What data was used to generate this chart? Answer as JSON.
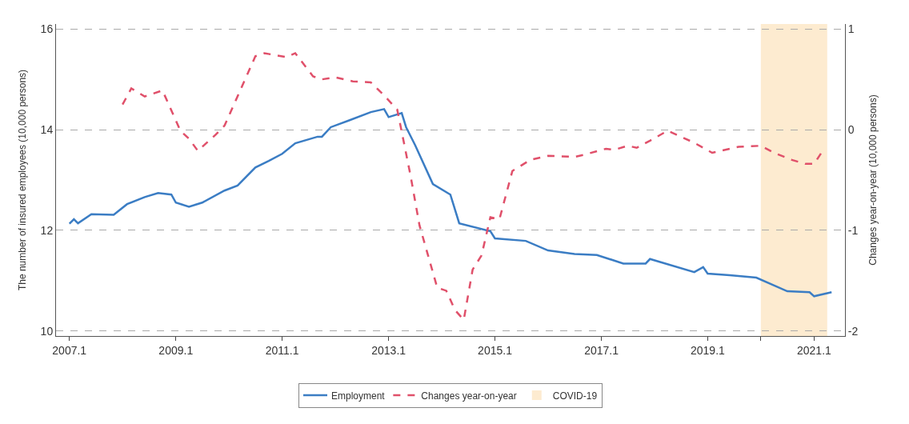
{
  "chart_data": {
    "type": "line",
    "ylabel": "The number of insured employees (10,000 persons)",
    "y2label": "Changes year-on-year (10,000 persons)",
    "series": [
      {
        "name": "Employment",
        "color": "#3b7dc4",
        "line_style": "solid",
        "x": [
          "2007-01",
          "2007-02",
          "2007-03",
          "2007-06",
          "2007-11",
          "2008-02",
          "2008-06",
          "2008-09",
          "2008-12",
          "2009-01",
          "2009-04",
          "2009-07",
          "2009-12",
          "2010-03",
          "2010-07",
          "2010-10",
          "2011-01",
          "2011-04",
          "2011-09",
          "2011-10",
          "2011-12",
          "2012-04",
          "2012-09",
          "2012-12",
          "2013-01",
          "2013-04",
          "2013-05",
          "2013-07",
          "2013-11",
          "2014-03",
          "2014-05",
          "2014-12",
          "2015-01",
          "2015-08",
          "2016-01",
          "2016-07",
          "2016-12",
          "2017-06",
          "2017-11",
          "2017-12",
          "2018-10",
          "2018-12",
          "2019-01",
          "2019-06",
          "2019-12",
          "2020-07",
          "2020-12",
          "2021-01",
          "2021-05"
        ],
        "values": [
          12.13,
          12.22,
          12.14,
          12.32,
          12.31,
          12.52,
          12.66,
          12.74,
          12.71,
          12.55,
          12.47,
          12.55,
          12.79,
          12.89,
          13.25,
          13.38,
          13.52,
          13.73,
          13.86,
          13.86,
          14.05,
          14.18,
          14.35,
          14.41,
          14.25,
          14.33,
          14.05,
          13.7,
          12.92,
          12.71,
          12.14,
          11.98,
          11.84,
          11.79,
          11.6,
          11.53,
          11.51,
          11.34,
          11.34,
          11.43,
          11.17,
          11.27,
          11.14,
          11.11,
          11.06,
          10.79,
          10.77,
          10.69,
          10.77
        ]
      },
      {
        "name": "Changes year-on-year",
        "color": "#e0506a",
        "line_style": "dashed",
        "axis": "y2",
        "x": [
          "2008-01",
          "2008-03",
          "2008-06",
          "2008-10",
          "2009-02",
          "2009-04",
          "2009-06",
          "2009-10",
          "2009-12",
          "2010-05",
          "2010-07",
          "2010-09",
          "2011-02",
          "2011-04",
          "2011-08",
          "2011-10",
          "2012-01",
          "2012-05",
          "2012-09",
          "2012-12",
          "2013-03",
          "2013-04",
          "2013-06",
          "2013-08",
          "2013-12",
          "2014-02",
          "2014-04",
          "2014-06",
          "2014-08",
          "2014-10",
          "2014-12",
          "2015-02",
          "2015-05",
          "2015-09",
          "2016-01",
          "2016-07",
          "2016-09",
          "2017-02",
          "2017-04",
          "2017-07",
          "2017-09",
          "2017-12",
          "2018-04",
          "2018-06",
          "2018-10",
          "2019-02",
          "2019-08",
          "2020-01",
          "2020-04",
          "2020-08",
          "2020-11",
          "2021-01",
          "2021-03"
        ],
        "values": [
          0.25,
          0.41,
          0.33,
          0.39,
          -0.01,
          -0.09,
          -0.21,
          -0.05,
          0.04,
          0.53,
          0.73,
          0.76,
          0.72,
          0.76,
          0.53,
          0.5,
          0.52,
          0.48,
          0.47,
          0.34,
          0.2,
          -0.02,
          -0.46,
          -0.95,
          -1.57,
          -1.6,
          -1.79,
          -1.89,
          -1.39,
          -1.25,
          -0.87,
          -0.89,
          -0.41,
          -0.3,
          -0.26,
          -0.27,
          -0.25,
          -0.19,
          -0.2,
          -0.16,
          -0.18,
          -0.11,
          -0.01,
          -0.05,
          -0.13,
          -0.23,
          -0.17,
          -0.16,
          -0.23,
          -0.3,
          -0.34,
          -0.34,
          -0.21
        ]
      }
    ],
    "xlim": [
      "2006-10",
      "2021-08"
    ],
    "xticks": [
      {
        "value": "2007-01",
        "label": "2007.1"
      },
      {
        "value": "2009-01",
        "label": "2009.1"
      },
      {
        "value": "2011-01",
        "label": "2011.1"
      },
      {
        "value": "2013-01",
        "label": "2013.1"
      },
      {
        "value": "2015-01",
        "label": "2015.1"
      },
      {
        "value": "2017-01",
        "label": "2017.1"
      },
      {
        "value": "2019-01",
        "label": "2019.1"
      },
      {
        "value": "2020-01",
        "label": null
      },
      {
        "value": "2021-01",
        "label": "2021.1"
      }
    ],
    "ylim": [
      9.9,
      16.1
    ],
    "yticks": [
      10,
      12,
      14,
      16
    ],
    "y2lim": [
      -2.05,
      1.05
    ],
    "y2ticks": [
      -2,
      -1,
      0,
      1
    ],
    "bands": [
      {
        "axis": "x",
        "from": "2020-01",
        "to": "2021-04",
        "label": "COVID-19",
        "color": "#fdebd0"
      }
    ],
    "grid": "y",
    "legend": "bottom"
  }
}
